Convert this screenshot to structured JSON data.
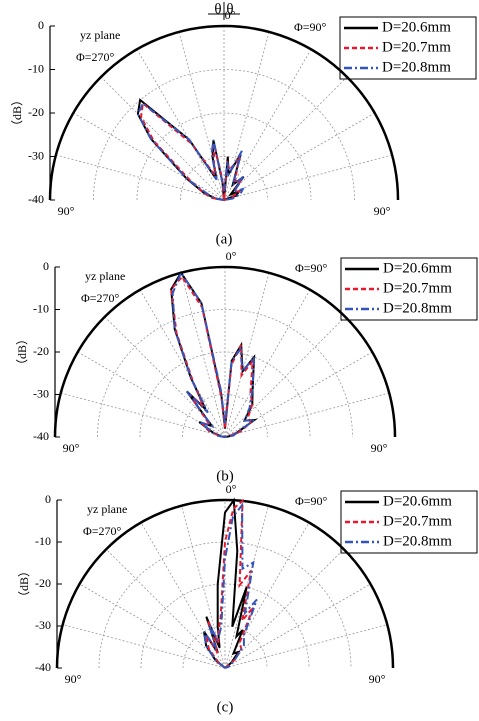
{
  "chart_data": [
    {
      "type": "polar",
      "caption": "(a)",
      "plane_label": "yz plane",
      "left_label": "Φ=270°",
      "right_label": "Φ=90°",
      "r_label": "（dB）",
      "arrow_labels": [
        "θ",
        "θ"
      ],
      "rlim": [
        -40,
        0
      ],
      "rticks": [
        0,
        -10,
        -20,
        -30,
        -40
      ],
      "thetaticks": [
        {
          "value": 0,
          "label": "0°"
        },
        {
          "value": -90,
          "label": "90°"
        },
        {
          "value": 90,
          "label": "90°"
        }
      ],
      "theta": [
        -90,
        -80,
        -70,
        -60,
        -50,
        -45,
        -40,
        -30,
        -20,
        -15,
        -10,
        -5,
        0,
        5,
        10,
        20,
        30,
        40,
        50,
        60,
        70,
        80,
        90
      ],
      "series": [
        {
          "name": "D=20.6mm",
          "color": "#000000",
          "dash": "solid",
          "values": [
            -40,
            -38,
            -35,
            -30,
            -18,
            -12,
            -10,
            -24,
            -35,
            -30,
            -26,
            -36,
            -40,
            -30,
            -34,
            -29,
            -36,
            -33,
            -38,
            -36,
            -37,
            -40,
            -40
          ]
        },
        {
          "name": "D=20.7mm",
          "color": "#e8192c",
          "dash": "dash",
          "values": [
            -40,
            -37,
            -35,
            -31,
            -19,
            -13,
            -11,
            -25,
            -34,
            -31,
            -27,
            -35,
            -40,
            -31,
            -33,
            -30,
            -35,
            -34,
            -37,
            -36,
            -38,
            -39,
            -40
          ]
        },
        {
          "name": "D=20.8mm",
          "color": "#3355bb",
          "dash": "dashdot",
          "values": [
            -40,
            -38,
            -36,
            -30,
            -18,
            -12,
            -11,
            -24,
            -35,
            -29,
            -26,
            -36,
            -38,
            -31,
            -34,
            -28,
            -36,
            -33,
            -37,
            -35,
            -36,
            -38,
            -40
          ]
        }
      ]
    },
    {
      "type": "polar",
      "caption": "(b)",
      "plane_label": "yz plane",
      "left_label": "Φ=270°",
      "right_label": "Φ=90°",
      "r_label": "（dB）",
      "rlim": [
        -40,
        0
      ],
      "rticks": [
        0,
        -10,
        -20,
        -30,
        -40
      ],
      "thetaticks": [
        {
          "value": 0,
          "label": "0°"
        },
        {
          "value": -90,
          "label": "90°"
        },
        {
          "value": 90,
          "label": "90°"
        }
      ],
      "theta": [
        -90,
        -80,
        -70,
        -60,
        -50,
        -40,
        -35,
        -30,
        -25,
        -20,
        -15,
        -10,
        -5,
        0,
        5,
        10,
        15,
        20,
        30,
        40,
        50,
        60,
        70,
        80,
        90
      ],
      "series": [
        {
          "name": "D=20.6mm",
          "color": "#000000",
          "dash": "solid",
          "values": [
            -40,
            -39,
            -37,
            -33,
            -36,
            -26,
            -32,
            -24,
            -12,
            -3,
            0,
            -8,
            -30,
            -38,
            -22,
            -18,
            -24,
            -20,
            -27,
            -30,
            -34,
            -32,
            -37,
            -39,
            -40
          ]
        },
        {
          "name": "D=20.7mm",
          "color": "#e8192c",
          "dash": "dash",
          "values": [
            -40,
            -39,
            -36,
            -34,
            -35,
            -27,
            -31,
            -25,
            -13,
            -3,
            -1,
            -9,
            -31,
            -38,
            -23,
            -18,
            -25,
            -21,
            -28,
            -30,
            -33,
            -33,
            -36,
            -39,
            -40
          ]
        },
        {
          "name": "D=20.8mm",
          "color": "#3355bb",
          "dash": "dashdot",
          "values": [
            -40,
            -38,
            -37,
            -33,
            -36,
            -26,
            -33,
            -24,
            -12,
            -4,
            0,
            -8,
            -29,
            -37,
            -22,
            -19,
            -24,
            -20,
            -27,
            -31,
            -34,
            -32,
            -37,
            -38,
            -40
          ]
        }
      ]
    },
    {
      "type": "polar",
      "caption": "(c)",
      "plane_label": "yz plane",
      "left_label": "Φ=270°",
      "right_label": "Φ=90°",
      "r_label": "（dB）",
      "rlim": [
        -40,
        0
      ],
      "rticks": [
        0,
        -10,
        -20,
        -30,
        -40
      ],
      "thetaticks": [
        {
          "value": 0,
          "label": "0°"
        },
        {
          "value": -90,
          "label": "90°"
        },
        {
          "value": 90,
          "label": "90°"
        }
      ],
      "theta": [
        -90,
        -70,
        -50,
        -40,
        -30,
        -25,
        -20,
        -15,
        -10,
        -5,
        0,
        3,
        6,
        10,
        15,
        20,
        25,
        30,
        40,
        50,
        70,
        90
      ],
      "series": [
        {
          "name": "D=20.6mm",
          "color": "#000000",
          "dash": "solid",
          "values": [
            -40,
            -40,
            -37,
            -33,
            -30,
            -36,
            -27,
            -35,
            -30,
            -20,
            -3,
            0,
            -12,
            -30,
            -20,
            -32,
            -30,
            -36,
            -35,
            -38,
            -40,
            -40
          ]
        },
        {
          "name": "D=20.7mm",
          "color": "#e8192c",
          "dash": "dash",
          "values": [
            -40,
            -40,
            -38,
            -34,
            -31,
            -36,
            -28,
            -34,
            -31,
            -28,
            -10,
            -2,
            0,
            -20,
            -16,
            -28,
            -24,
            -33,
            -34,
            -37,
            -40,
            -40
          ]
        },
        {
          "name": "D=20.8mm",
          "color": "#3355bb",
          "dash": "dashdot",
          "values": [
            -40,
            -40,
            -37,
            -33,
            -30,
            -35,
            -29,
            -33,
            -32,
            -30,
            -14,
            -4,
            -1,
            -16,
            -14,
            -26,
            -22,
            -31,
            -33,
            -37,
            -39,
            -40
          ]
        }
      ]
    }
  ]
}
